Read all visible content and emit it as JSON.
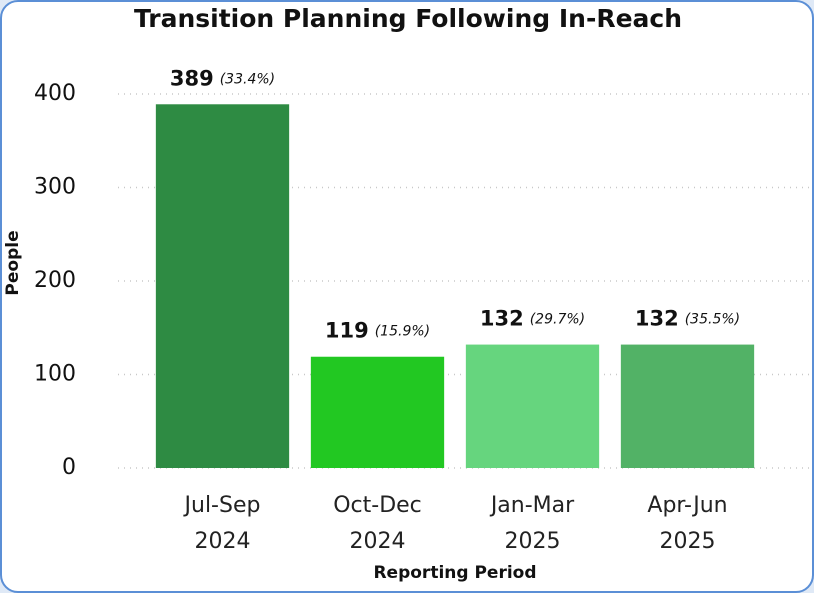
{
  "chart_data": {
    "type": "bar",
    "title": "Transition Planning Following In-Reach",
    "x_label": "Reporting Period",
    "y_label": "People",
    "categories": [
      "Jul-Sep 2024",
      "Oct-Dec 2024",
      "Jan-Mar 2025",
      "Apr-Jun 2025"
    ],
    "values": [
      389,
      119,
      132,
      132
    ],
    "shares": [
      33.4,
      15.9,
      29.7,
      35.5
    ],
    "share_labels": [
      "(33.4%)",
      "(15.9%)",
      "(29.7%)",
      "(35.5%)"
    ],
    "colors": [
      "#2e8b43",
      "#22c822",
      "#66d57e",
      "#52b266"
    ],
    "ylim": [
      0,
      400
    ],
    "yticks": [
      0,
      100,
      200,
      300,
      400
    ],
    "grid": true
  }
}
